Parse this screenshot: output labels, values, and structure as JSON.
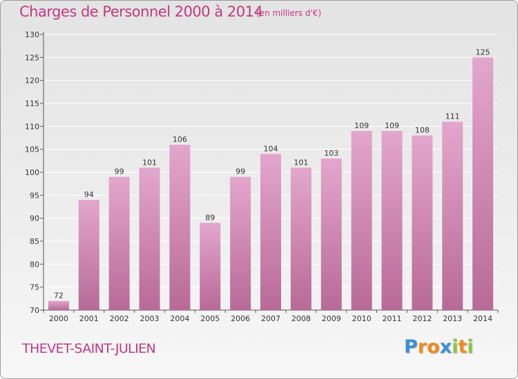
{
  "header": {
    "title": "Charges de Personnel 2000 à 2014",
    "subtitle": "(en milliers d'€)"
  },
  "footer": {
    "commune": "THEVET-SAINT-JULIEN",
    "logo_text": "Proxiti"
  },
  "colors": {
    "accent": "#c0397f",
    "bar_top": "#e3a6cc",
    "bar_bottom": "#b86a97"
  },
  "chart_data": {
    "type": "bar",
    "title": "Charges de Personnel 2000 à 2014",
    "subtitle": "(en milliers d'€)",
    "xlabel": "",
    "ylabel": "",
    "categories": [
      "2000",
      "2001",
      "2002",
      "2003",
      "2004",
      "2005",
      "2006",
      "2007",
      "2008",
      "2009",
      "2010",
      "2011",
      "2012",
      "2013",
      "2014"
    ],
    "values": [
      72,
      94,
      99,
      101,
      106,
      89,
      99,
      104,
      101,
      103,
      109,
      109,
      108,
      111,
      125
    ],
    "ylim": [
      70,
      130
    ],
    "yticks": [
      70,
      75,
      80,
      85,
      90,
      95,
      100,
      105,
      110,
      115,
      120,
      125,
      130
    ],
    "grid": true,
    "legend": "none"
  }
}
